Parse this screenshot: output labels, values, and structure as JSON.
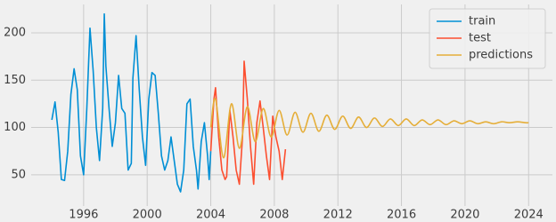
{
  "chart_data": {
    "type": "line",
    "xlim": [
      1992.7,
      2025.5
    ],
    "ylim": [
      17,
      230
    ],
    "xticks": [
      1996,
      2000,
      2004,
      2008,
      2012,
      2016,
      2020,
      2024
    ],
    "yticks": [
      50,
      100,
      150,
      200
    ],
    "grid": true,
    "legend": "upper-right",
    "series": [
      {
        "name": "train",
        "color": "#008fd5",
        "x": [
          1994.0,
          1994.2,
          1994.4,
          1994.6,
          1994.8,
          1995.0,
          1995.2,
          1995.4,
          1995.6,
          1995.8,
          1996.0,
          1996.2,
          1996.4,
          1996.6,
          1996.8,
          1997.0,
          1997.2,
          1997.3,
          1997.4,
          1997.6,
          1997.8,
          1998.0,
          1998.2,
          1998.4,
          1998.6,
          1998.8,
          1999.0,
          1999.1,
          1999.3,
          1999.5,
          1999.7,
          1999.9,
          2000.1,
          2000.3,
          2000.5,
          2000.7,
          2000.9,
          2001.1,
          2001.3,
          2001.5,
          2001.7,
          2001.9,
          2002.1,
          2002.3,
          2002.5,
          2002.7,
          2002.9,
          2003.1,
          2003.2,
          2003.4,
          2003.6,
          2003.8,
          2003.9,
          2004.0
        ],
        "values": [
          108,
          127,
          95,
          45,
          44,
          75,
          135,
          162,
          140,
          70,
          50,
          120,
          205,
          160,
          100,
          65,
          120,
          220,
          165,
          120,
          80,
          105,
          155,
          120,
          115,
          55,
          62,
          152,
          197,
          140,
          90,
          60,
          130,
          158,
          155,
          115,
          70,
          55,
          65,
          90,
          65,
          40,
          32,
          55,
          125,
          130,
          80,
          55,
          35,
          85,
          105,
          70,
          45,
          75
        ]
      },
      {
        "name": "test",
        "color": "#fc4f30",
        "x": [
          2004.0,
          2004.2,
          2004.3,
          2004.5,
          2004.7,
          2004.9,
          2005.0,
          2005.2,
          2005.4,
          2005.6,
          2005.8,
          2006.0,
          2006.1,
          2006.3,
          2006.5,
          2006.7,
          2006.9,
          2007.1,
          2007.3,
          2007.5,
          2007.7,
          2007.9,
          2008.1,
          2008.3,
          2008.5,
          2008.7
        ],
        "values": [
          75,
          130,
          142,
          90,
          55,
          45,
          48,
          118,
          90,
          55,
          40,
          90,
          170,
          130,
          80,
          40,
          105,
          128,
          100,
          70,
          45,
          112,
          90,
          75,
          45,
          77
        ]
      },
      {
        "name": "predictions",
        "color": "#e5ae38",
        "x": [
          2004.0,
          2004.3,
          2004.8,
          2005.3,
          2005.8,
          2006.3,
          2006.8,
          2007.3,
          2007.8,
          2008.3,
          2008.8,
          2009.3,
          2009.8,
          2010.3,
          2010.8,
          2011.3,
          2011.8,
          2012.3,
          2012.8,
          2013.3,
          2013.8,
          2014.3,
          2014.8,
          2015.3,
          2015.8,
          2016.3,
          2016.8,
          2017.3,
          2017.8,
          2018.3,
          2018.8,
          2019.3,
          2019.8,
          2020.3,
          2020.8,
          2021.3,
          2021.8,
          2022.3,
          2022.8,
          2023.3,
          2023.8,
          2024.0
        ],
        "values": [
          100,
          130,
          68,
          125,
          78,
          122,
          85,
          120,
          90,
          118,
          92,
          116,
          95,
          115,
          96,
          113,
          98,
          112,
          99,
          111,
          100,
          110,
          101,
          109,
          102,
          109,
          102,
          108,
          103,
          108,
          103,
          107,
          104,
          107,
          104,
          106,
          104,
          106,
          105,
          106,
          105,
          105
        ]
      }
    ]
  }
}
